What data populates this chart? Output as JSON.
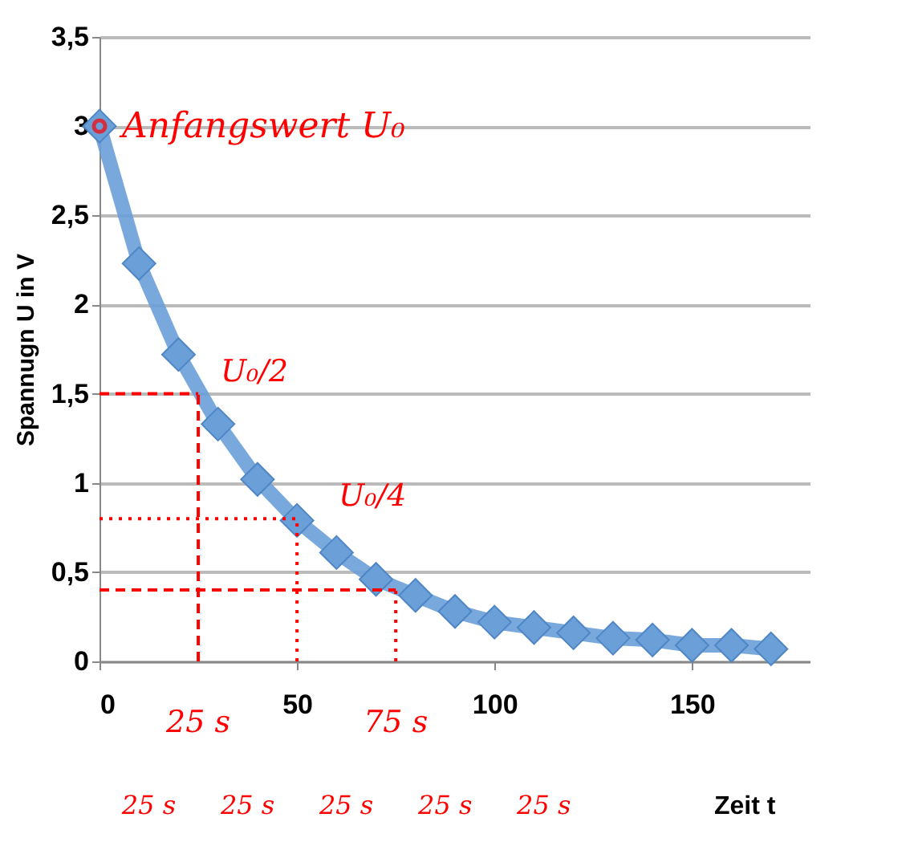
{
  "chart_data": {
    "type": "line",
    "xlabel": "Zeit t",
    "ylabel": "Spannugn U in V",
    "x": [
      0,
      10,
      20,
      30,
      40,
      50,
      60,
      70,
      80,
      90,
      100,
      110,
      120,
      130,
      140,
      150,
      160,
      170
    ],
    "series": [
      {
        "color": "#6a9fd8",
        "values": [
          3.0,
          2.23,
          1.72,
          1.33,
          1.02,
          0.79,
          0.61,
          0.46,
          0.37,
          0.28,
          0.22,
          0.19,
          0.16,
          0.13,
          0.12,
          0.09,
          0.09,
          0.07
        ]
      }
    ],
    "xlim": [
      0,
      180
    ],
    "xticks": [
      0,
      50,
      100,
      150
    ],
    "ylim": [
      0,
      3.5
    ],
    "yticks": [
      0,
      {
        "value": 0.5,
        "label": "0,5"
      },
      1,
      {
        "value": 1.5,
        "label": "1,5"
      },
      2,
      {
        "value": 2.5,
        "label": "2,5"
      },
      3,
      {
        "value": 3.5,
        "label": "3,5"
      }
    ],
    "grid": "y",
    "marker": "diamond",
    "line_style": "solid",
    "ref_lines": [
      {
        "axis": "y",
        "value": 1.5,
        "label": "U₀/2",
        "color": "#ff0000",
        "line_style": "dashed"
      },
      {
        "axis": "y",
        "value": 0.8,
        "label": "U₀/4",
        "color": "#ff0000",
        "line_style": "dotted"
      },
      {
        "axis": "y",
        "value": 0.4,
        "label": null,
        "color": "#ff0000",
        "line_style": "dashed"
      },
      {
        "axis": "x",
        "value": 25,
        "label": "25 s",
        "color": "#ff0000",
        "line_style": "dashed"
      },
      {
        "axis": "x",
        "value": 50,
        "label": null,
        "color": "#ff0000",
        "line_style": "dotted"
      },
      {
        "axis": "x",
        "value": 75,
        "label": "75 s",
        "color": "#ff0000",
        "line_style": "dotted"
      }
    ],
    "annotations": [
      {
        "text": "Anfangswert U₀",
        "x": 0,
        "y": 3
      },
      "25 s",
      "25 s",
      "25 s",
      "25 s",
      "25 s"
    ]
  }
}
